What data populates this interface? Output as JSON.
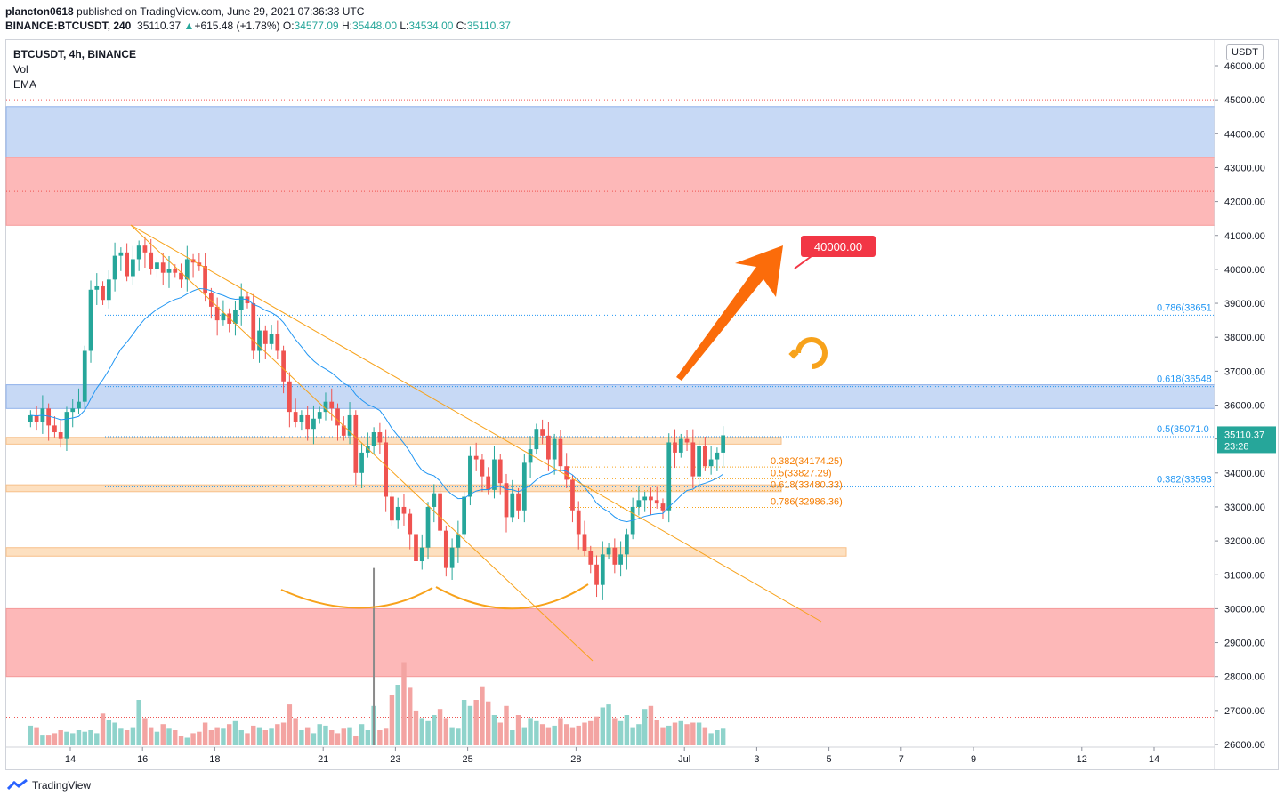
{
  "header": {
    "user": "plancton0618",
    "published": " published on TradingView.com, June 29, 2021 07:36:33 UTC",
    "symbol": "BINANCE:BTCUSDT, 240",
    "price": "35110.37",
    "change": "+615.48 (+1.78%)",
    "o_label": "O:",
    "o": "34577.09",
    "h_label": "H:",
    "h": "35448.00",
    "l_label": "L:",
    "l": "34534.00",
    "c_label": "C:",
    "c": "35110.37"
  },
  "legend": {
    "symbol": "BTCUSDT, 4h, BINANCE",
    "vol": "Vol",
    "ema": "EMA"
  },
  "currency_button": "USDT",
  "footer_brand": "TradingView",
  "colors": {
    "up": "#26a69a",
    "down": "#ef5350",
    "ema": "#2196f3",
    "trend": "#f7a21b",
    "blue_zone": "#c7d9f5",
    "red_zone": "#fdb8b8",
    "orange_zone": "#fde0c0",
    "arrow": "#fb6c0a",
    "target": "#f23645"
  },
  "chart_data": {
    "type": "candlestick",
    "ylim": [
      26000,
      46500
    ],
    "y_ticks": [
      26000,
      27000,
      28000,
      29000,
      30000,
      31000,
      32000,
      33000,
      34000,
      35000,
      36000,
      37000,
      38000,
      39000,
      40000,
      41000,
      42000,
      43000,
      44000,
      45000,
      46000
    ],
    "y_tick_labels": [
      "26000.00",
      "27000.00",
      "28000.00",
      "29000.00",
      "30000.00",
      "31000.00",
      "32000.00",
      "33000.00",
      "34000.00",
      "35000.00",
      "36000.00",
      "37000.00",
      "38000.00",
      "39000.00",
      "40000.00",
      "41000.00",
      "42000.00",
      "43000.00",
      "44000.00",
      "45000.00",
      "46000.00"
    ],
    "x_ticks": [
      {
        "label": "14",
        "day": 14
      },
      {
        "label": "16",
        "day": 16
      },
      {
        "label": "18",
        "day": 18
      },
      {
        "label": "21",
        "day": 21
      },
      {
        "label": "23",
        "day": 23
      },
      {
        "label": "25",
        "day": 25
      },
      {
        "label": "28",
        "day": 28
      },
      {
        "label": "Jul",
        "day": 31
      },
      {
        "label": "3",
        "day": 33
      },
      {
        "label": "5",
        "day": 35
      },
      {
        "label": "7",
        "day": 37
      },
      {
        "label": "9",
        "day": 39
      },
      {
        "label": "12",
        "day": 42
      },
      {
        "label": "14",
        "day": 44
      }
    ],
    "candles_start_day": 12.9,
    "candle_interval_days": 0.1667,
    "closes": [
      35700,
      35500,
      35900,
      35400,
      35200,
      35000,
      35800,
      35900,
      36100,
      37600,
      39400,
      39500,
      39100,
      39700,
      40400,
      40500,
      39800,
      40300,
      40700,
      40500,
      40000,
      40200,
      39900,
      40000,
      39900,
      39700,
      40300,
      40200,
      40100,
      39300,
      38900,
      38500,
      38700,
      38400,
      38800,
      39200,
      39000,
      37600,
      38200,
      37800,
      38100,
      37600,
      36700,
      35800,
      35500,
      35700,
      35300,
      35600,
      35800,
      36100,
      35900,
      35400,
      35100,
      35700,
      34000,
      34600,
      34800,
      35200,
      34900,
      33300,
      32600,
      33000,
      32800,
      32200,
      31400,
      31800,
      33000,
      33400,
      32300,
      31200,
      31800,
      32200,
      33300,
      34500,
      34400,
      33900,
      33500,
      34400,
      33700,
      32700,
      33400,
      32900,
      34300,
      34700,
      35300,
      35100,
      34400,
      35000,
      34200,
      33800,
      32900,
      32200,
      31700,
      31300,
      30700,
      31600,
      31800,
      31300,
      31600,
      32200,
      33000,
      33200,
      33300,
      33200,
      33100,
      32900,
      34900,
      34600,
      35000,
      34900,
      33900,
      34800,
      34200,
      34400,
      34600,
      35110
    ],
    "volumes": [
      1.3,
      1.2,
      0.7,
      0.7,
      0.8,
      1.0,
      0.9,
      0.8,
      1.0,
      0.9,
      1.0,
      0.8,
      2.1,
      1.7,
      1.5,
      1.1,
      1.0,
      1.2,
      3.0,
      1.8,
      1.2,
      0.9,
      1.4,
      1.1,
      1.0,
      0.6,
      0.5,
      0.8,
      0.9,
      1.5,
      1.0,
      1.2,
      1.1,
      1.4,
      1.6,
      1.0,
      0.8,
      1.3,
      1.2,
      1.0,
      1.1,
      1.4,
      1.5,
      2.7,
      1.8,
      1.0,
      1.2,
      0.8,
      1.4,
      1.3,
      1.0,
      0.8,
      1.1,
      1.2,
      0.6,
      1.4,
      1.0,
      2.6,
      1.0,
      1.1,
      3.3,
      4.0,
      5.5,
      3.8,
      2.3,
      1.8,
      1.6,
      2.0,
      2.4,
      1.8,
      1.2,
      1.1,
      3.0,
      2.6,
      3.0,
      3.9,
      2.9,
      2.0,
      1.5,
      2.6,
      1.0,
      2.0,
      1.2,
      1.8,
      1.6,
      1.4,
      1.2,
      1.3,
      1.8,
      1.4,
      1.2,
      1.3,
      1.5,
      1.6,
      1.9,
      2.5,
      2.7,
      1.8,
      1.6,
      2.0,
      1.2,
      1.4,
      2.4,
      2.6,
      1.7,
      1.2,
      1.3,
      1.5,
      1.6,
      1.4,
      1.5,
      1.5,
      1.2,
      0.8,
      1.0,
      1.1
    ],
    "zones": [
      {
        "kind": "blue",
        "from": 43300,
        "to": 44800
      },
      {
        "kind": "red",
        "from": 41300,
        "to": 43300
      },
      {
        "kind": "blue",
        "from": 35900,
        "to": 36600
      },
      {
        "kind": "red",
        "from": 28000,
        "to": 30000
      }
    ],
    "levels_right": [
      {
        "label": "0.786(38651",
        "value": 38651
      },
      {
        "label": "0.618(36548",
        "value": 36548
      },
      {
        "label": "0.5(35071.0",
        "value": 35071
      },
      {
        "label": "0.382(33593",
        "value": 33593
      }
    ],
    "levels_mid": [
      {
        "label": "0.382(34174.25)",
        "value": 34174.25
      },
      {
        "label": "0.5(33827.29)",
        "value": 33827.29
      },
      {
        "label": "0.618(33480.33)",
        "value": 33480.33
      },
      {
        "label": "0.786(32986.36)",
        "value": 32986.36
      }
    ],
    "dotted_levels": [
      45000,
      42300,
      26800
    ],
    "target_label": "40000.00",
    "current_price_label": "35110.37",
    "countdown": "23:28"
  }
}
